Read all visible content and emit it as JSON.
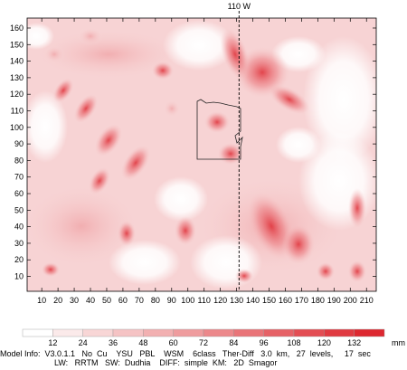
{
  "map": {
    "meridian_label": "110 W",
    "x_axis": {
      "min": 1,
      "max": 216,
      "ticks": [
        10,
        20,
        30,
        40,
        50,
        60,
        70,
        80,
        90,
        100,
        110,
        120,
        130,
        140,
        150,
        160,
        170,
        180,
        190,
        200,
        210
      ]
    },
    "y_axis": {
      "min": 1,
      "max": 166,
      "ticks": [
        10,
        20,
        30,
        40,
        50,
        60,
        70,
        80,
        90,
        100,
        110,
        120,
        130,
        140,
        150,
        160
      ]
    },
    "meridian_x": 131.5
  },
  "legend": {
    "unit": "mm",
    "labels": [
      "12",
      "24",
      "36",
      "48",
      "60",
      "72",
      "84",
      "96",
      "108",
      "120",
      "132"
    ],
    "colors": [
      "#ffffff",
      "#fbeaea",
      "#f8d6d6",
      "#f5c3c4",
      "#f2b0b1",
      "#ef9c9e",
      "#ec888b",
      "#e97478",
      "#e66166",
      "#e34d53",
      "#e03a41",
      "#dd2830"
    ]
  },
  "info": {
    "line1": "Model Info:  V3.0.1.1   No  Cu    YSU   PBL    WSM    6class   Ther-Diff   3.0  km,   27  levels,     17  sec",
    "line2": "LW:   RRTM   SW:  Dudhia    DIFF:  simple  KM:   2D  Smagor"
  }
}
